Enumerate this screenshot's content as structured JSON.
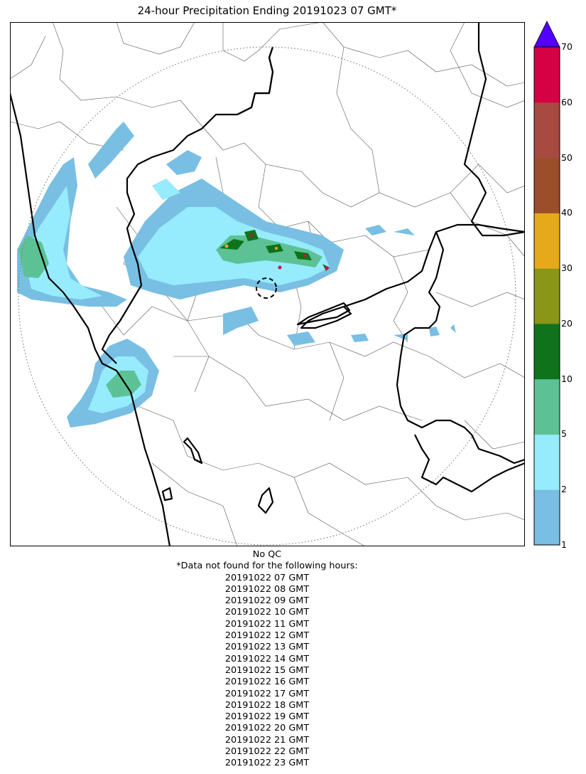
{
  "title": "24-hour Precipitation Ending 20191023 07 GMT*",
  "colorbar": {
    "extend": "max",
    "ticks": [
      "1",
      "2",
      "5",
      "10",
      "20",
      "30",
      "40",
      "50",
      "60",
      "70"
    ],
    "bins": [
      {
        "from": 1,
        "to": 2,
        "color": "#78bfe3"
      },
      {
        "from": 2,
        "to": 5,
        "color": "#96ebfc"
      },
      {
        "from": 5,
        "to": 10,
        "color": "#5cc296"
      },
      {
        "from": 10,
        "to": 20,
        "color": "#0f731c"
      },
      {
        "from": 20,
        "to": 30,
        "color": "#8a9617"
      },
      {
        "from": 30,
        "to": 40,
        "color": "#e6a91a"
      },
      {
        "from": 40,
        "to": 50,
        "color": "#9c4e2b"
      },
      {
        "from": 50,
        "to": 60,
        "color": "#a84a42"
      },
      {
        "from": 60,
        "to": 70,
        "color": "#d60044"
      }
    ],
    "over_color": "#5200ff"
  },
  "footer": {
    "qc": "No QC",
    "missing_heading": "*Data not found for the following hours:",
    "missing_hours": [
      "20191022 07 GMT",
      "20191022 08 GMT",
      "20191022 09 GMT",
      "20191022 10 GMT",
      "20191022 11 GMT",
      "20191022 12 GMT",
      "20191022 13 GMT",
      "20191022 14 GMT",
      "20191022 15 GMT",
      "20191022 16 GMT",
      "20191022 17 GMT",
      "20191022 18 GMT",
      "20191022 19 GMT",
      "20191022 20 GMT",
      "20191022 21 GMT",
      "20191022 22 GMT",
      "20191022 23 GMT"
    ]
  }
}
